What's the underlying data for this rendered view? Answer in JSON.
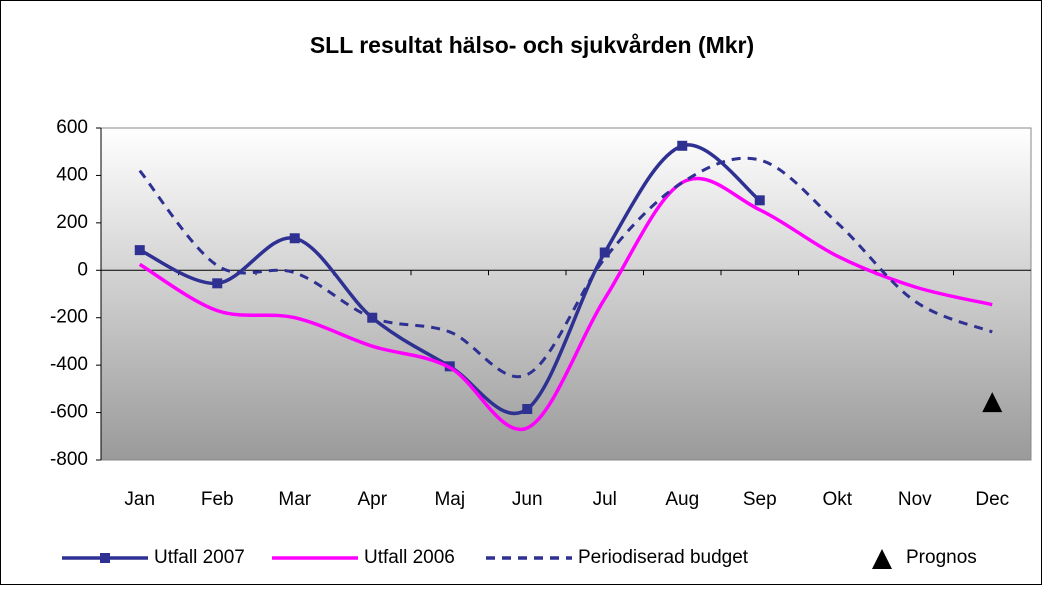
{
  "chart_data": {
    "type": "line",
    "title": "SLL resultat hälso- och sjukvården (Mkr)",
    "categories": [
      "Jan",
      "Feb",
      "Mar",
      "Apr",
      "Maj",
      "Jun",
      "Jul",
      "Aug",
      "Sep",
      "Okt",
      "Nov",
      "Dec"
    ],
    "series": [
      {
        "name": "Utfall 2007",
        "color": "#2e3192",
        "style": "solid",
        "marker": "square",
        "values": [
          85,
          -55,
          135,
          -200,
          -405,
          -585,
          75,
          525,
          295,
          null,
          null,
          null
        ]
      },
      {
        "name": "Utfall 2006",
        "color": "#ff00ff",
        "style": "solid",
        "marker": "none",
        "values": [
          25,
          -170,
          -200,
          -320,
          -410,
          -665,
          -120,
          370,
          255,
          60,
          -70,
          -145
        ]
      },
      {
        "name": "Periodiserad budget",
        "color": "#2e3192",
        "style": "dashed",
        "marker": "none",
        "values": [
          420,
          20,
          -10,
          -200,
          -260,
          -440,
          50,
          370,
          465,
          200,
          -130,
          -260
        ]
      },
      {
        "name": "Prognos",
        "color": "#000000",
        "style": "none",
        "marker": "triangle",
        "values": [
          null,
          null,
          null,
          null,
          null,
          null,
          null,
          null,
          null,
          null,
          null,
          -560
        ]
      }
    ],
    "ylim": [
      -800,
      600
    ],
    "yticks": [
      -800,
      -600,
      -400,
      -200,
      0,
      200,
      400,
      600
    ],
    "grid": false,
    "legend": "bottom"
  }
}
